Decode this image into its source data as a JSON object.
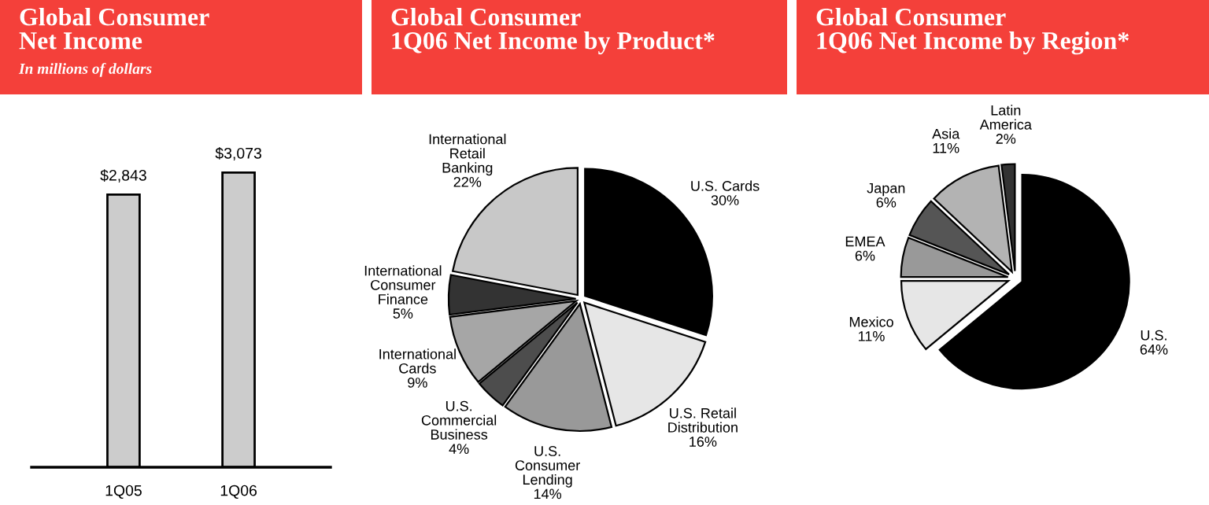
{
  "chart_data": [
    {
      "type": "bar",
      "title": "Global Consumer\nNet Income",
      "subtitle": "In millions of dollars",
      "categories": [
        "1Q05",
        "1Q06"
      ],
      "values": [
        2843,
        3073
      ],
      "value_labels": [
        "$2,843",
        "$3,073"
      ],
      "color": "#cccccc",
      "grid": false,
      "tick_labels": "x"
    },
    {
      "type": "pie",
      "title": "Global Consumer\n1Q06 Net Income by Product*",
      "categories": [
        "U.S. Cards",
        "U.S. Retail\nDistribution",
        "U.S.\nConsumer\nLending",
        "U.S.\nCommercial\nBusiness",
        "International\nCards",
        "International\nConsumer\nFinance",
        "International\nRetail\nBanking"
      ],
      "values": [
        30,
        16,
        14,
        4,
        9,
        5,
        22
      ],
      "value_labels": [
        "30%",
        "16%",
        "14%",
        "4%",
        "9%",
        "5%",
        "22%"
      ],
      "colors": [
        "#000000",
        "#e6e6e6",
        "#999999",
        "#4d4d4d",
        "#a6a6a6",
        "#333333",
        "#c8c8c8"
      ]
    },
    {
      "type": "pie",
      "title": "Global Consumer\n1Q06 Net Income by Region*",
      "categories": [
        "U.S.",
        "Mexico",
        "EMEA",
        "Japan",
        "Asia",
        "Latin\nAmerica"
      ],
      "values": [
        64,
        11,
        6,
        6,
        11,
        2
      ],
      "value_labels": [
        "64%",
        "11%",
        "6%",
        "6%",
        "11%",
        "2%"
      ],
      "colors": [
        "#000000",
        "#e6e6e6",
        "#999999",
        "#555555",
        "#b3b3b3",
        "#333333"
      ]
    }
  ]
}
